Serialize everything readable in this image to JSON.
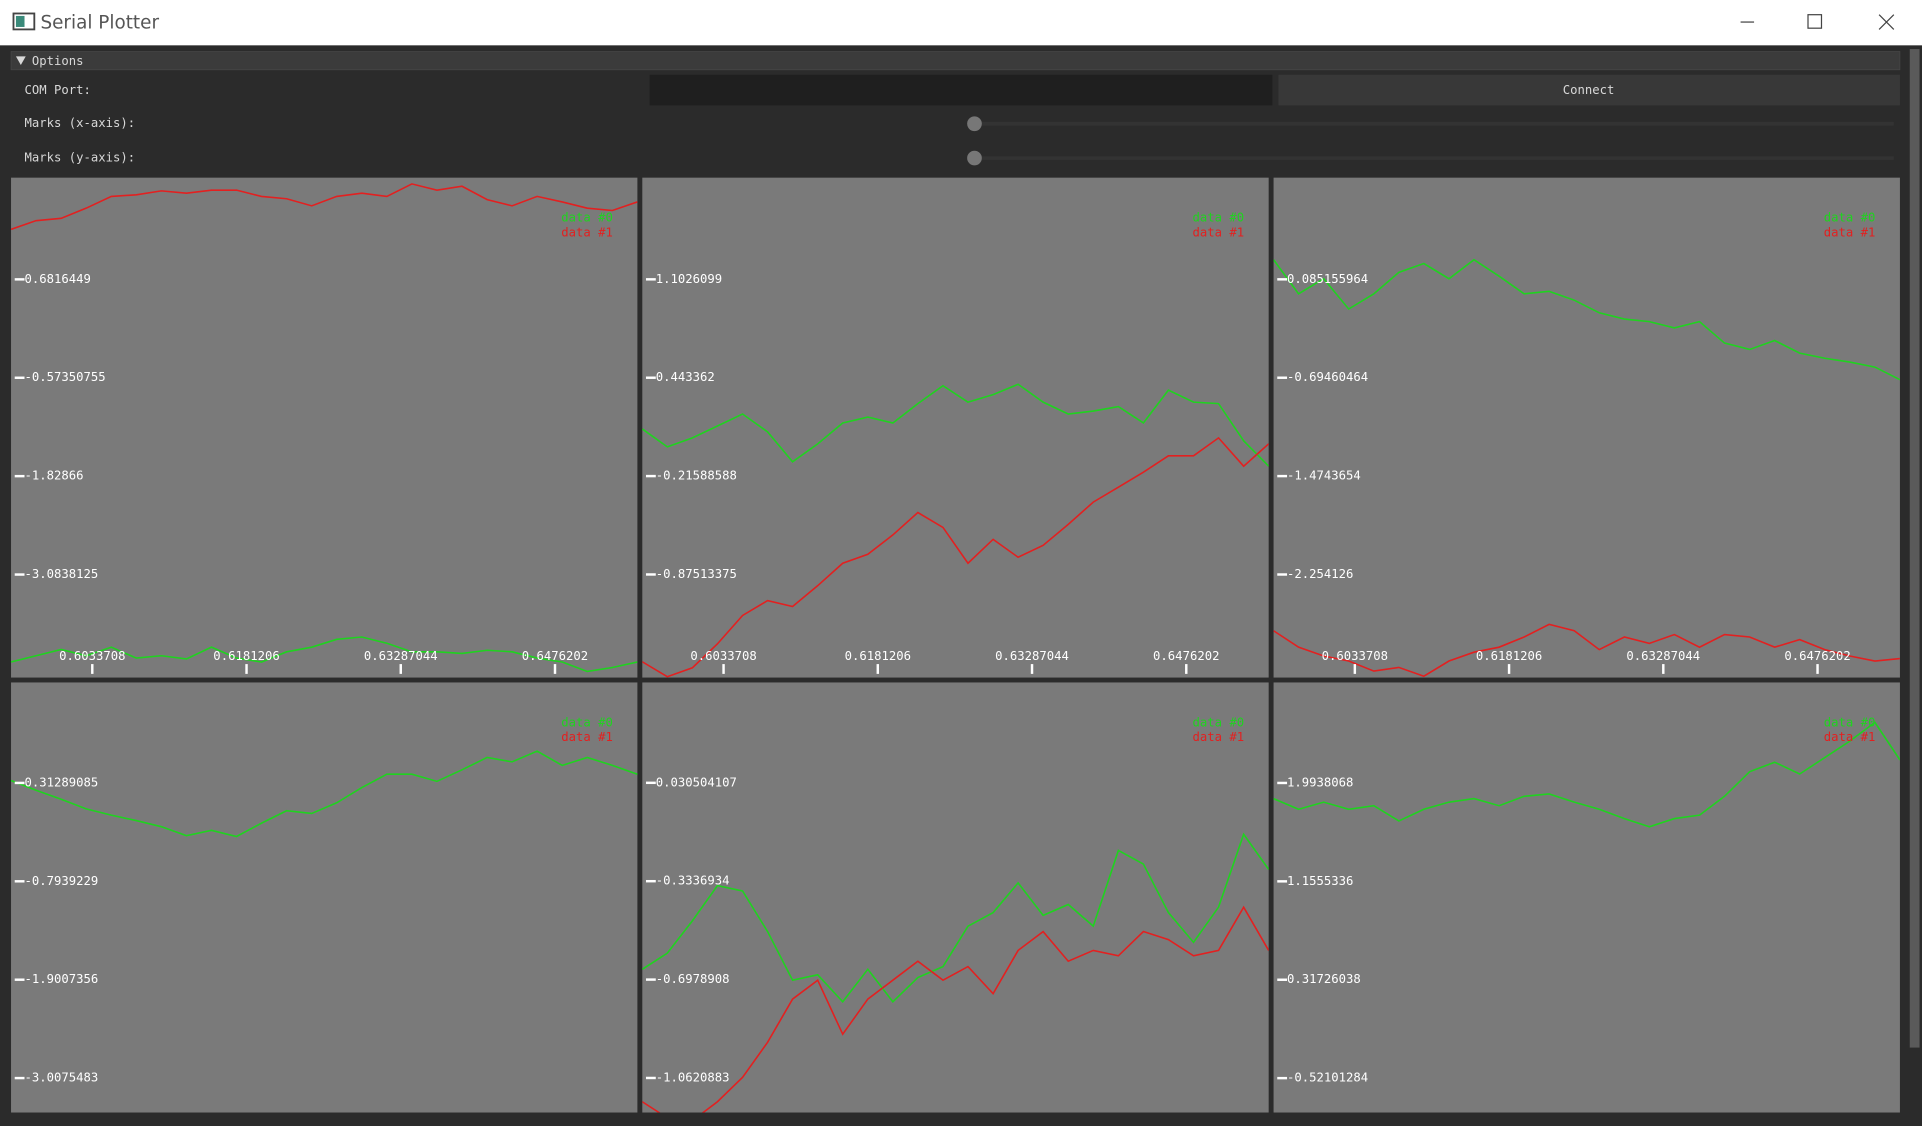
{
  "window": {
    "title": "Serial Plotter"
  },
  "options": {
    "header": "Options",
    "com_port_label": "COM Port:",
    "connect_button": "Connect",
    "marks_x_label": "Marks (x-axis):",
    "marks_y_label": "Marks (y-axis):"
  },
  "plots": [
    {
      "ylim": [
        -4.398,
        1.979
      ],
      "yticks": [
        0.6816449,
        -0.57350755,
        -1.82866,
        -3.0838125
      ],
      "xlim": [
        0.5956,
        0.6555
      ],
      "xticks": [
        0.6033708,
        0.6181206,
        0.63287044,
        0.6476202
      ],
      "series": [
        {
          "name": "data #0",
          "color": "#1fd31f",
          "values": [
            -4.2,
            -4.12,
            -4.04,
            -4.12,
            -4.01,
            -4.15,
            -4.12,
            -4.16,
            -4.01,
            -4.15,
            -4.2,
            -4.07,
            -4.01,
            -3.91,
            -3.88,
            -3.96,
            -4.07,
            -4.07,
            -4.09,
            -4.05,
            -4.07,
            -4.15,
            -4.2,
            -4.32,
            -4.27,
            -4.2
          ]
        },
        {
          "name": "data #1",
          "color": "#e32020",
          "values": [
            1.32,
            1.43,
            1.46,
            1.59,
            1.74,
            1.76,
            1.81,
            1.78,
            1.82,
            1.82,
            1.74,
            1.71,
            1.62,
            1.74,
            1.78,
            1.74,
            1.9,
            1.82,
            1.87,
            1.7,
            1.62,
            1.74,
            1.67,
            1.59,
            1.56,
            1.67
          ]
        }
      ]
    },
    {
      "ylim": [
        -1.566,
        1.784
      ],
      "yticks": [
        1.1026099,
        0.443362,
        -0.21588588,
        -0.87513375
      ],
      "xlim": [
        0.5956,
        0.6555
      ],
      "xticks": [
        0.6033708,
        0.6181206,
        0.63287044,
        0.6476202
      ],
      "series": [
        {
          "name": "data #0",
          "color": "#1fd31f",
          "values": [
            0.1,
            -0.02,
            0.04,
            0.12,
            0.2,
            0.08,
            -0.12,
            0.0,
            0.14,
            0.18,
            0.14,
            0.27,
            0.39,
            0.28,
            0.33,
            0.4,
            0.28,
            0.2,
            0.22,
            0.25,
            0.14,
            0.36,
            0.28,
            0.27,
            0.02,
            -0.15
          ]
        },
        {
          "name": "data #1",
          "color": "#e32020",
          "values": [
            -1.46,
            -1.56,
            -1.5,
            -1.34,
            -1.15,
            -1.05,
            -1.09,
            -0.95,
            -0.8,
            -0.74,
            -0.61,
            -0.46,
            -0.56,
            -0.8,
            -0.64,
            -0.76,
            -0.68,
            -0.54,
            -0.39,
            -0.29,
            -0.19,
            -0.08,
            -0.08,
            0.04,
            -0.15,
            0.0
          ]
        }
      ]
    },
    {
      "ylim": [
        -3.071,
        0.891
      ],
      "yticks": [
        0.085155964,
        -0.69460464,
        -1.4743654,
        -2.254126
      ],
      "xlim": [
        0.5956,
        0.6555
      ],
      "xticks": [
        0.6033708,
        0.6181206,
        0.63287044,
        0.6476202
      ],
      "series": [
        {
          "name": "data #0",
          "color": "#1fd31f",
          "values": [
            0.24,
            -0.03,
            0.09,
            -0.15,
            -0.03,
            0.14,
            0.21,
            0.09,
            0.24,
            0.11,
            -0.03,
            -0.01,
            -0.08,
            -0.18,
            -0.23,
            -0.25,
            -0.3,
            -0.25,
            -0.42,
            -0.47,
            -0.4,
            -0.5,
            -0.54,
            -0.57,
            -0.61,
            -0.71
          ]
        },
        {
          "name": "data #1",
          "color": "#e32020",
          "values": [
            -2.7,
            -2.83,
            -2.9,
            -2.94,
            -3.02,
            -2.99,
            -3.06,
            -2.94,
            -2.87,
            -2.83,
            -2.75,
            -2.65,
            -2.7,
            -2.85,
            -2.75,
            -2.8,
            -2.73,
            -2.83,
            -2.73,
            -2.75,
            -2.83,
            -2.77,
            -2.85,
            -2.9,
            -2.94,
            -2.92
          ]
        }
      ]
    },
    {
      "ylim": [
        -3.395,
        1.443
      ],
      "yticks": [
        0.31289085,
        -0.7939229,
        -1.9007356,
        -3.0075483
      ],
      "series": [
        {
          "name": "data #0",
          "color": "#1fd31f",
          "values": [
            0.34,
            0.23,
            0.13,
            0.02,
            -0.05,
            -0.11,
            -0.18,
            -0.28,
            -0.22,
            -0.29,
            -0.14,
            0.0,
            -0.03,
            0.09,
            0.26,
            0.41,
            0.41,
            0.33,
            0.46,
            0.6,
            0.55,
            0.67,
            0.51,
            0.6,
            0.51,
            0.41
          ]
        },
        {
          "name": "data #1",
          "color": "#e32020",
          "values": [
            null,
            null,
            null,
            null,
            null,
            null,
            null,
            null,
            null,
            null,
            null,
            null,
            null,
            null,
            null,
            null,
            null,
            null,
            null,
            null,
            null,
            null,
            null,
            null,
            null,
            null
          ]
        }
      ]
    },
    {
      "ylim": [
        -1.19,
        0.402
      ],
      "yticks": [
        0.030504107,
        -0.3336934,
        -0.6978908,
        -1.0620883
      ],
      "series": [
        {
          "name": "data #0",
          "color": "#1fd31f",
          "values": [
            -0.66,
            -0.6,
            -0.48,
            -0.35,
            -0.37,
            -0.52,
            -0.7,
            -0.68,
            -0.78,
            -0.66,
            -0.78,
            -0.69,
            -0.65,
            -0.5,
            -0.45,
            -0.34,
            -0.46,
            -0.42,
            -0.5,
            -0.22,
            -0.27,
            -0.45,
            -0.56,
            -0.43,
            -0.16,
            -0.29
          ]
        },
        {
          "name": "data #1",
          "color": "#e32020",
          "values": [
            -1.15,
            -1.21,
            -1.22,
            -1.15,
            -1.06,
            -0.93,
            -0.77,
            -0.7,
            -0.9,
            -0.77,
            -0.7,
            -0.63,
            -0.7,
            -0.65,
            -0.75,
            -0.59,
            -0.52,
            -0.63,
            -0.59,
            -0.61,
            -0.52,
            -0.55,
            -0.61,
            -0.59,
            -0.43,
            -0.59
          ]
        }
      ]
    },
    {
      "ylim": [
        -0.814,
        2.85
      ],
      "yticks": [
        1.9938068,
        1.1555336,
        0.31726038,
        -0.52101284
      ],
      "series": [
        {
          "name": "data #0",
          "color": "#1fd31f",
          "values": [
            1.86,
            1.77,
            1.83,
            1.77,
            1.8,
            1.67,
            1.77,
            1.83,
            1.86,
            1.8,
            1.88,
            1.9,
            1.83,
            1.77,
            1.69,
            1.62,
            1.69,
            1.72,
            1.88,
            2.09,
            2.17,
            2.07,
            2.21,
            2.35,
            2.51,
            2.19
          ]
        },
        {
          "name": "data #1",
          "color": "#e32020",
          "values": [
            null,
            null,
            null,
            null,
            null,
            null,
            null,
            null,
            null,
            null,
            null,
            null,
            null,
            null,
            null,
            null,
            null,
            null,
            null,
            null,
            null,
            null,
            null,
            null,
            null,
            null
          ]
        }
      ]
    }
  ]
}
